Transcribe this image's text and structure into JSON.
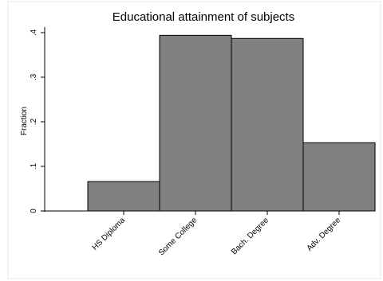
{
  "chart_data": {
    "type": "bar",
    "title": "Educational attainment of subjects",
    "xlabel": "",
    "ylabel": "Fraction",
    "categories": [
      "HS Diploma",
      "Some College",
      "Bach. Degree",
      "Adv. Degree"
    ],
    "values": [
      0.066,
      0.394,
      0.387,
      0.153
    ],
    "ylim": [
      0,
      0.4
    ],
    "yticks": [
      0,
      0.1,
      0.2,
      0.3,
      0.4
    ],
    "ytick_labels": [
      "0",
      ".1",
      ".2",
      ".3",
      ".4"
    ],
    "grid": false,
    "legend": "none",
    "colors": {
      "bar_fill": "#808080",
      "bar_stroke": "#000000",
      "axis": "#000000",
      "background": "#ffffff",
      "frame": "#e8e8e8"
    }
  }
}
